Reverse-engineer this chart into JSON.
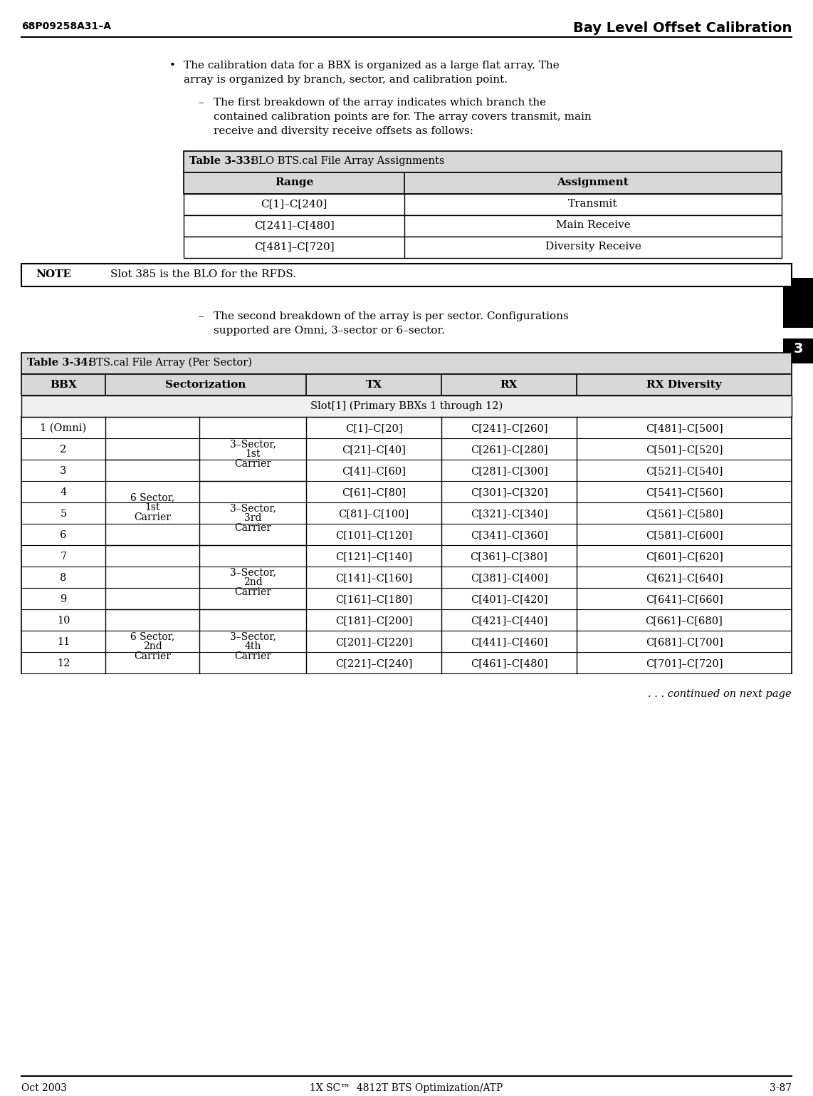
{
  "page_width": 11.42,
  "page_height": 15.38,
  "bg_color": "#ffffff",
  "header_left": "68P09258A31–A",
  "header_right": "Bay Level Offset Calibration",
  "footer_left": "Oct 2003",
  "footer_center": "1X SC™  4812T BTS Optimization/ATP",
  "footer_right": "3-87",
  "page_number_tab": "3",
  "bullet_line1": "The calibration data for a BBX is organized as a large flat array. The",
  "bullet_line2": "array is organized by branch, sector, and calibration point.",
  "sub1_line1": "The first breakdown of the array indicates which branch the",
  "sub1_line2": "contained calibration points are for. The array covers transmit, main",
  "sub1_line3": "receive and diversity receive offsets as follows:",
  "table33_bold": "Table 3-33:",
  "table33_rest": " BLO BTS.cal File Array Assignments",
  "table33_header": [
    "Range",
    "Assignment"
  ],
  "table33_rows": [
    [
      "C[1]–C[240]",
      "Transmit"
    ],
    [
      "C[241]–C[480]",
      "Main Receive"
    ],
    [
      "C[481]–C[720]",
      "Diversity Receive"
    ]
  ],
  "note_label": "NOTE",
  "note_text": "Slot 385 is the BLO for the RFDS.",
  "sub2_line1": "The second breakdown of the array is per sector. Configurations",
  "sub2_line2": "supported are Omni, 3–sector or 6–sector.",
  "table34_bold": "Table 3-34:",
  "table34_rest": " BTS.cal File Array (Per Sector)",
  "table34_headers": [
    "BBX",
    "Sectorization",
    "TX",
    "RX",
    "RX Diversity"
  ],
  "table34_slot_row": "Slot[1] (Primary BBXs 1 through 12)",
  "table34_bbx": [
    "1 (Omni)",
    "2",
    "3",
    "4",
    "5",
    "6",
    "7",
    "8",
    "9",
    "10",
    "11",
    "12"
  ],
  "table34_tx": [
    "C[1]–C[20]",
    "C[21]–C[40]",
    "C[41]–C[60]",
    "C[61]–C[80]",
    "C[81]–C[100]",
    "C[101]–C[120]",
    "C[121]–C[140]",
    "C[141]–C[160]",
    "C[161]–C[180]",
    "C[181]–C[200]",
    "C[201]–C[220]",
    "C[221]–C[240]"
  ],
  "table34_rx": [
    "C[241]–C[260]",
    "C[261]–C[280]",
    "C[281]–C[300]",
    "C[301]–C[320]",
    "C[321]–C[340]",
    "C[341]–C[360]",
    "C[361]–C[380]",
    "C[381]–C[400]",
    "C[401]–C[420]",
    "C[421]–C[440]",
    "C[441]–C[460]",
    "C[461]–C[480]"
  ],
  "table34_rxd": [
    "C[481]–C[500]",
    "C[501]–C[520]",
    "C[521]–C[540]",
    "C[541]–C[560]",
    "C[561]–C[580]",
    "C[581]–C[600]",
    "C[601]–C[620]",
    "C[621]–C[640]",
    "C[641]–C[660]",
    "C[661]–C[680]",
    "C[681]–C[700]",
    "C[701]–C[720]"
  ],
  "sect_groups": [
    {
      "r0": 0,
      "r1": 2,
      "col1_label": "",
      "col2_label": "3–Sector,\n1st\nCarrier"
    },
    {
      "r0": 2,
      "r1": 6,
      "col1_label": "6 Sector,\n1st\nCarrier",
      "col2_label": "3–Sector,\n3rd\nCarrier"
    },
    {
      "r0": 6,
      "r1": 9,
      "col1_label": "6 Sector,\n2nd\nCarrier",
      "col2_label": "3–Sector,\n2nd\nCarrier"
    },
    {
      "r0": 9,
      "r1": 12,
      "col1_label": "",
      "col2_label": "3–Sector,\n4th\nCarrier"
    }
  ],
  "continued_text": ". . . continued on next page"
}
